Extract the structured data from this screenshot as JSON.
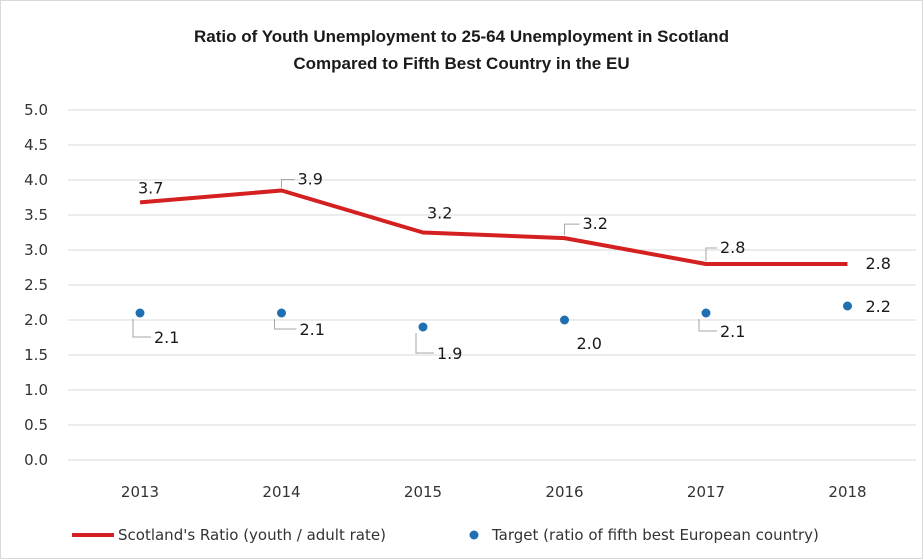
{
  "chart_data": {
    "type": "line",
    "title_line1": "Ratio of Youth Unemployment to 25-64 Unemployment in Scotland",
    "title_line2": "Compared to Fifth Best Country in the EU",
    "categories": [
      "2013",
      "2014",
      "2015",
      "2016",
      "2017",
      "2018"
    ],
    "ylim": [
      0,
      5
    ],
    "yticks": [
      "0.0",
      "0.5",
      "1.0",
      "1.5",
      "2.0",
      "2.5",
      "3.0",
      "3.5",
      "4.0",
      "4.5",
      "5.0"
    ],
    "grid": true,
    "legend_position": "bottom",
    "series": [
      {
        "name": "Scotland's Ratio (youth / adult rate)",
        "style": "line",
        "color": "#d42020",
        "values": [
          3.68,
          3.85,
          3.25,
          3.17,
          2.8,
          2.8
        ],
        "labels": [
          "3.7",
          "3.9",
          "3.2",
          "3.2",
          "2.8",
          "2.8"
        ]
      },
      {
        "name": "Target (ratio of fifth best European country)",
        "style": "marker",
        "color": "#1f6fb2",
        "values": [
          2.1,
          2.1,
          1.9,
          2.0,
          2.1,
          2.2
        ],
        "labels": [
          "2.1",
          "2.1",
          "1.9",
          "2.0",
          "2.1",
          "2.2"
        ]
      }
    ]
  }
}
